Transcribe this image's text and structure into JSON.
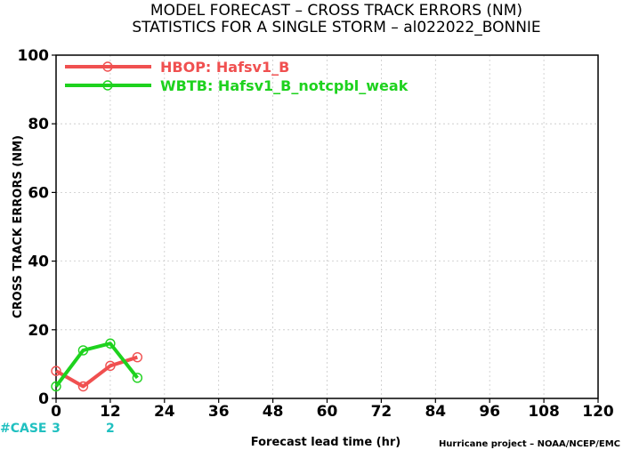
{
  "chart_data": {
    "type": "line",
    "title": [
      "MODEL FORECAST – CROSS TRACK ERRORS (NM)",
      "STATISTICS FOR A SINGLE STORM – al022022_BONNIE"
    ],
    "xlabel": "Forecast lead time (hr)",
    "ylabel": "CROSS TRACK ERRORS (NM)",
    "xlim": [
      0,
      120
    ],
    "ylim": [
      0,
      100
    ],
    "xticks": [
      0,
      12,
      24,
      36,
      48,
      60,
      72,
      84,
      96,
      108,
      120
    ],
    "yticks": [
      0,
      20,
      40,
      60,
      80,
      100
    ],
    "grid": true,
    "legend_position": "top-left",
    "series": [
      {
        "name": "HBOP: Hafsv1_B",
        "color": "#f05050",
        "x": [
          0,
          6,
          12,
          18
        ],
        "y": [
          8,
          3.5,
          9.5,
          12
        ]
      },
      {
        "name": "WBTB: Hafsv1_B_notcpbl_weak",
        "color": "#1ed21e",
        "x": [
          0,
          6,
          12,
          18
        ],
        "y": [
          3.5,
          14,
          16,
          6
        ]
      }
    ],
    "cases": {
      "label": "#CASE",
      "x": [
        0,
        12
      ],
      "values": [
        "3",
        "2"
      ],
      "color": "#20c0c0"
    },
    "credit": "Hurricane project – NOAA/NCEP/EMC"
  }
}
